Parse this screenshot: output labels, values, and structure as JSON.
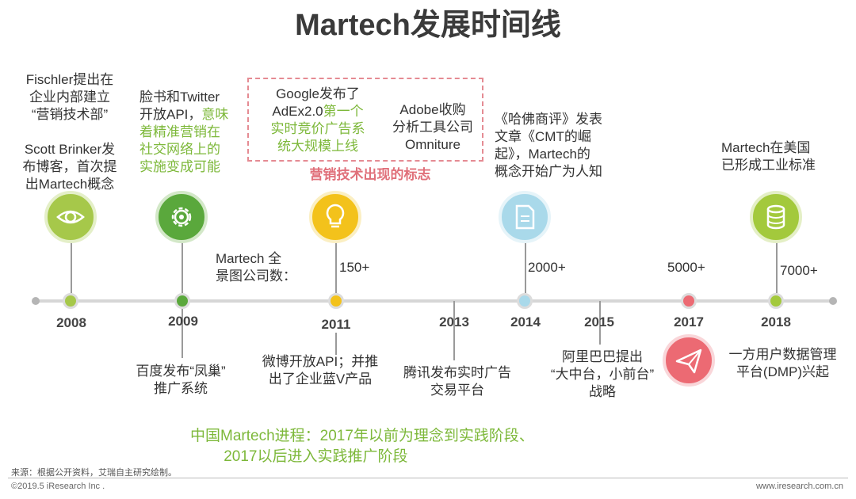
{
  "title": "Martech发展时间线",
  "years": [
    "2008",
    "2009",
    "2011",
    "2013",
    "2014",
    "2015",
    "2017",
    "2018"
  ],
  "events": {
    "e2008a": [
      "Fischler提出在",
      "企业内部建立",
      "“营销技术部”"
    ],
    "e2008b": [
      "Scott Brinker发",
      "布博客，首次提",
      "出Martech概念"
    ],
    "e2009a_plain": [
      "脸书和Twitter",
      "开放API，"
    ],
    "e2009a_green": [
      "意味",
      "着精准营销在",
      "社交网络上的",
      "实施变成可能"
    ],
    "e2009b": [
      "百度发布“凤巢”",
      "推广系统"
    ],
    "google_plain": [
      "Google发布了",
      "AdEx2.0"
    ],
    "google_green": [
      "第一个",
      "实时竞价广告系",
      "统大规模上线"
    ],
    "adobe": [
      "Adobe收购",
      "分析工具公司",
      "Omniture"
    ],
    "mark_label": "营销技术出现的标志",
    "e2011b": [
      "微博开放API；并推",
      "出了企业蓝V产品"
    ],
    "e2013b": [
      "腾讯发布实时广告",
      "交易平台"
    ],
    "e2014a": [
      "《哈佛商评》发表",
      "文章《CMT的崛",
      "起》，Martech的",
      "概念开始广为人知"
    ],
    "e2015b": [
      "阿里巴巴提出",
      "“大中台，小前台”",
      "战略"
    ],
    "e2018a": [
      "Martech在美国",
      "已形成工业标准"
    ],
    "e2018b": [
      "一方用户数据管理",
      "平台(DMP)兴起"
    ]
  },
  "landscape": {
    "label": [
      "Martech 全",
      "景图公司数："
    ],
    "counts": [
      "150+",
      "2000+",
      "5000+",
      "7000+"
    ]
  },
  "note": "中国Martech进程：2017年以前为理念到实践阶段、\n        2017以后进入实践推广阶段",
  "footer": {
    "source": "来源：根据公开资料，艾瑞自主研究绘制。",
    "copyright": "©2019.5 iResearch Inc .",
    "url": "www.iresearch.com.cn"
  },
  "colors": {
    "2008": "#a6c84a",
    "2009": "#5aa83c",
    "2011": "#f3c21b",
    "2014": "#a9d9ea",
    "2017": "#ec6a73",
    "2018": "#a3c93c",
    "mark": "#e0707a",
    "note": "#7db83a"
  },
  "icons": [
    "eye-icon",
    "gear-icon",
    "lightbulb-icon",
    "document-icon",
    "paper-plane-icon",
    "database-icon"
  ]
}
